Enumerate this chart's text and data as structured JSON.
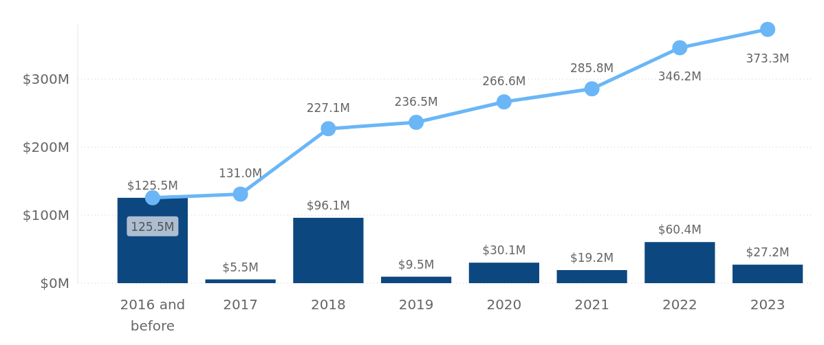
{
  "chart_data": {
    "type": "bar",
    "categories": [
      "2016 and before",
      "2017",
      "2018",
      "2019",
      "2020",
      "2021",
      "2022",
      "2023"
    ],
    "series": [
      {
        "color": "#0d4780",
        "values": [
          125.5,
          5.5,
          96.1,
          9.5,
          30.1,
          19.2,
          60.4,
          27.2
        ],
        "value_labels": [
          "$125.5M",
          "$5.5M",
          "$96.1M",
          "$9.5M",
          "$30.1M",
          "$19.2M",
          "$60.4M",
          "$27.2M"
        ]
      },
      {
        "type": "line",
        "color": "#6ab6f7",
        "values": [
          125.5,
          131.0,
          227.1,
          236.5,
          266.6,
          285.8,
          346.2,
          373.3
        ],
        "value_labels": [
          "125.5M",
          "131.0M",
          "227.1M",
          "236.5M",
          "266.6M",
          "285.8M",
          "346.2M",
          "373.3M"
        ]
      }
    ],
    "ylim": [
      0,
      380
    ],
    "yticks": [
      {
        "value": 0,
        "label": "$0M"
      },
      {
        "value": 100,
        "label": "$100M"
      },
      {
        "value": 200,
        "label": "$200M"
      },
      {
        "value": 300,
        "label": "$300M"
      }
    ],
    "grid": "y",
    "marker": "circle",
    "line_style": "solid"
  }
}
